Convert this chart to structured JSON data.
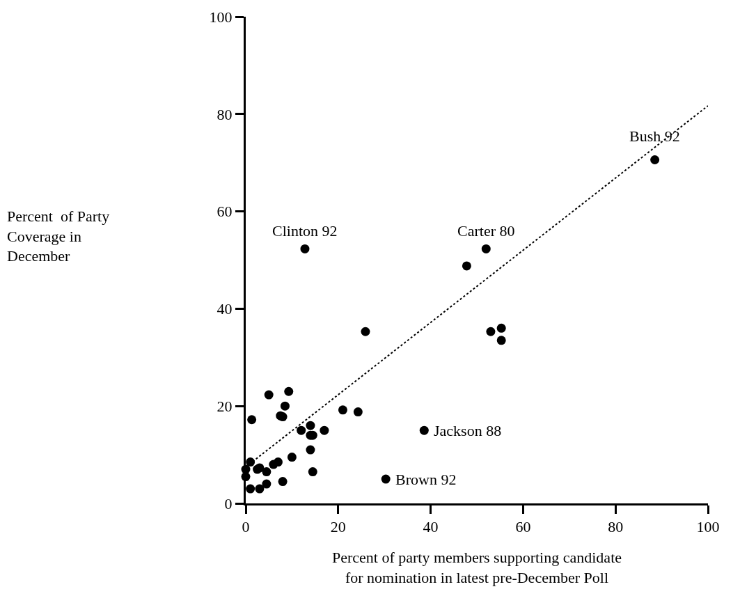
{
  "chart_data": {
    "type": "scatter",
    "xlabel": "Percent of party members supporting candidate\nfor nomination in latest pre-December Poll",
    "xlim": [
      0,
      100
    ],
    "xticks": [
      0,
      20,
      40,
      60,
      80,
      100
    ],
    "ylim": [
      0,
      100
    ],
    "yticks": [
      0,
      20,
      40,
      60,
      80,
      100
    ],
    "grid": false,
    "series": [
      {
        "color": "#000000",
        "marker": "circle",
        "x": [
          0,
          0,
          1,
          1,
          1.3,
          2.5,
          3,
          3,
          4.5,
          4.5,
          5,
          6,
          7,
          7.5,
          8,
          8,
          8.5,
          9.3,
          10,
          12,
          14,
          14,
          14,
          14.5,
          14.5,
          17,
          21,
          24.3,
          25.9,
          12.8,
          30.3,
          38.6,
          47.8,
          52,
          53,
          55.3,
          55.3,
          88.5
        ],
        "values": [
          5.5,
          7,
          3,
          8.5,
          17.2,
          7,
          3,
          7.3,
          6.5,
          4,
          22.3,
          8,
          8.5,
          18,
          17.8,
          4.5,
          20,
          23,
          9.5,
          15,
          16,
          11,
          14,
          14,
          6.5,
          15,
          19.2,
          18.8,
          35.3,
          52.3,
          5,
          15,
          48.8,
          52.3,
          35.3,
          36,
          33.5,
          70.6
        ]
      },
      {
        "type": "line",
        "color": "#000000",
        "line_style": "dotted",
        "marker": "none",
        "x": [
          1.5,
          100
        ],
        "values": [
          8.6,
          81.7
        ]
      }
    ],
    "annotations": [
      "Percent  of Party\nCoverage in\nDecember",
      {
        "text": "Clinton 92",
        "x": 12.8,
        "y": 52.3
      },
      {
        "text": "Carter 80",
        "x": 52,
        "y": 52.3
      },
      {
        "text": "Bush 92",
        "x": 88.5,
        "y": 70.6
      },
      {
        "text": "Jackson 88",
        "x": 38.6,
        "y": 15
      },
      {
        "text": "Brown 92",
        "x": 30.3,
        "y": 5
      }
    ]
  }
}
